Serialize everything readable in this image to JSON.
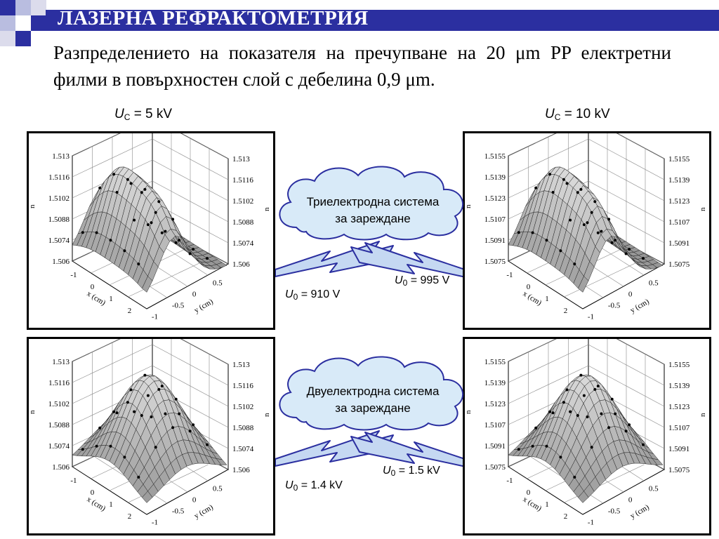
{
  "header": {
    "title": "ЛАЗЕРНА РЕФРАКТОМЕТРИЯ"
  },
  "subtitle": "Разпределението на показателя на пречупване на 20 μm PP електретни филми в повърхностен слой с дебелина 0,9 μm.",
  "columns": {
    "left": {
      "var": "U",
      "sub": "C",
      "value": "= 5 kV"
    },
    "right": {
      "var": "U",
      "sub": "C",
      "value": "= 10 kV"
    }
  },
  "clouds": {
    "top": {
      "line1": "Триелектродна система",
      "line2": "за зареждане"
    },
    "bottom": {
      "line1": "Двуелектродна система",
      "line2": "за зареждане"
    }
  },
  "voltages": {
    "top_left": {
      "var": "U",
      "sub": "0",
      "value": "= 910 V"
    },
    "top_right": {
      "var": "U",
      "sub": "0",
      "value": "= 995 V"
    },
    "bottom_left": {
      "var": "U",
      "sub": "0",
      "value": "= 1.4 kV"
    },
    "bottom_right": {
      "var": "U",
      "sub": "0",
      "value": "= 1.5 kV"
    }
  },
  "chart_data": [
    {
      "type": "surface",
      "panel": "top-left",
      "zlabel": "n",
      "zticks": [
        "1.513",
        "1.5116",
        "1.5102",
        "1.5088",
        "1.5074",
        "1.506"
      ],
      "xlabel": "x (cm)",
      "xticks": [
        "-1",
        "0",
        "1",
        "2"
      ],
      "ylabel": "y (cm)",
      "yticks": [
        "-1",
        "-0.5",
        "0",
        "0.5"
      ],
      "shape": "ridge"
    },
    {
      "type": "surface",
      "panel": "top-right",
      "zlabel": "n",
      "zticks": [
        "1.5155",
        "1.5139",
        "1.5123",
        "1.5107",
        "1.5091",
        "1.5075"
      ],
      "xlabel": "x (cm)",
      "xticks": [
        "-1",
        "0",
        "1",
        "2"
      ],
      "ylabel": "y (cm)",
      "yticks": [
        "-1",
        "-0.5",
        "0",
        "0.5"
      ],
      "shape": "ridge"
    },
    {
      "type": "surface",
      "panel": "bottom-left",
      "zlabel": "n",
      "zticks": [
        "1.513",
        "1.5116",
        "1.5102",
        "1.5088",
        "1.5074",
        "1.506"
      ],
      "xlabel": "x (cm)",
      "xticks": [
        "-1",
        "0",
        "1",
        "2"
      ],
      "ylabel": "y (cm)",
      "yticks": [
        "-1",
        "-0.5",
        "0",
        "0.5"
      ],
      "shape": "dome"
    },
    {
      "type": "surface",
      "panel": "bottom-right",
      "zlabel": "n",
      "zticks": [
        "1.5155",
        "1.5139",
        "1.5123",
        "1.5107",
        "1.5091",
        "1.5075"
      ],
      "xlabel": "x (cm)",
      "xticks": [
        "-1",
        "0",
        "1",
        "2"
      ],
      "ylabel": "y (cm)",
      "yticks": [
        "-1",
        "-0.5",
        "0",
        "0.5"
      ],
      "shape": "dome"
    }
  ]
}
